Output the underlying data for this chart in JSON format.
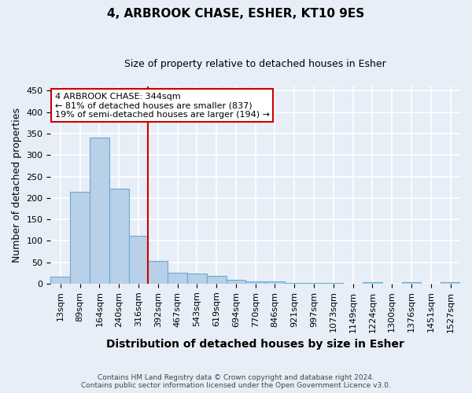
{
  "title": "4, ARBROOK CHASE, ESHER, KT10 9ES",
  "subtitle": "Size of property relative to detached houses in Esher",
  "xlabel": "Distribution of detached houses by size in Esher",
  "ylabel": "Number of detached properties",
  "bar_labels": [
    "13sqm",
    "89sqm",
    "164sqm",
    "240sqm",
    "316sqm",
    "392sqm",
    "467sqm",
    "543sqm",
    "619sqm",
    "694sqm",
    "770sqm",
    "846sqm",
    "921sqm",
    "997sqm",
    "1073sqm",
    "1149sqm",
    "1224sqm",
    "1300sqm",
    "1376sqm",
    "1451sqm",
    "1527sqm"
  ],
  "bar_values": [
    16,
    215,
    340,
    222,
    112,
    52,
    25,
    23,
    18,
    9,
    5,
    5,
    2,
    2,
    2,
    0,
    4,
    0,
    4,
    0,
    4
  ],
  "bar_color": "#b8d0e8",
  "bar_edge_color": "#6aaad4",
  "property_line_x": 4.5,
  "annotation_line1": "4 ARBROOK CHASE: 344sqm",
  "annotation_line2": "← 81% of detached houses are smaller (837)",
  "annotation_line3": "19% of semi-detached houses are larger (194) →",
  "annotation_box_color": "#ffffff",
  "annotation_box_edge_color": "#cc0000",
  "vline_color": "#cc0000",
  "footer_line1": "Contains HM Land Registry data © Crown copyright and database right 2024.",
  "footer_line2": "Contains public sector information licensed under the Open Government Licence v3.0.",
  "ylim": [
    0,
    460
  ],
  "bg_color": "#e8eef7",
  "grid_color": "#ffffff",
  "title_fontsize": 11,
  "subtitle_fontsize": 9,
  "xlabel_fontsize": 10,
  "ylabel_fontsize": 9,
  "tick_fontsize": 8,
  "annot_fontsize": 8,
  "footer_fontsize": 6.5
}
